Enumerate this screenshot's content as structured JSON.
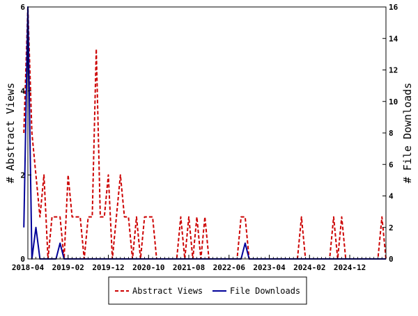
{
  "chart_data": {
    "type": "line",
    "xlabel": "",
    "ylabel_left": "# Abstract Views",
    "ylabel_right": "# File Downloads",
    "x_range": [
      "2018-04",
      "2025-09"
    ],
    "ylim_left": [
      0,
      6
    ],
    "ylim_right": [
      0,
      16
    ],
    "x_ticks": [
      "2018-04",
      "2019-02",
      "2019-12",
      "2020-10",
      "2021-08",
      "2022-06",
      "2023-04",
      "2024-02",
      "2024-12"
    ],
    "y_ticks_left": [
      "0",
      "2",
      "4",
      "6"
    ],
    "y_ticks_right": [
      "0",
      "2",
      "4",
      "6",
      "8",
      "10",
      "12",
      "14",
      "16"
    ],
    "legend_position": "bottom",
    "grid": false,
    "series": [
      {
        "name": "Abstract Views",
        "axis": "left",
        "color": "#cc0000",
        "style": "dashed",
        "points": [
          [
            "2018-03",
            3
          ],
          [
            "2018-04",
            6
          ],
          [
            "2018-05",
            3
          ],
          [
            "2018-06",
            2
          ],
          [
            "2018-07",
            1
          ],
          [
            "2018-08",
            2
          ],
          [
            "2018-09",
            0
          ],
          [
            "2018-10",
            1
          ],
          [
            "2018-11",
            1
          ],
          [
            "2018-12",
            1
          ],
          [
            "2019-01",
            0
          ],
          [
            "2019-02",
            2
          ],
          [
            "2019-03",
            1
          ],
          [
            "2019-04",
            1
          ],
          [
            "2019-05",
            1
          ],
          [
            "2019-06",
            0
          ],
          [
            "2019-07",
            1
          ],
          [
            "2019-08",
            1
          ],
          [
            "2019-09",
            5
          ],
          [
            "2019-10",
            1
          ],
          [
            "2019-11",
            1
          ],
          [
            "2019-12",
            2
          ],
          [
            "2020-01",
            0
          ],
          [
            "2020-02",
            1
          ],
          [
            "2020-03",
            2
          ],
          [
            "2020-04",
            1
          ],
          [
            "2020-05",
            1
          ],
          [
            "2020-06",
            0
          ],
          [
            "2020-07",
            1
          ],
          [
            "2020-08",
            0
          ],
          [
            "2020-09",
            1
          ],
          [
            "2020-10",
            1
          ],
          [
            "2020-11",
            1
          ],
          [
            "2020-12",
            0
          ],
          [
            "2021-01",
            0
          ],
          [
            "2021-02",
            0
          ],
          [
            "2021-03",
            0
          ],
          [
            "2021-04",
            0
          ],
          [
            "2021-05",
            0
          ],
          [
            "2021-06",
            1
          ],
          [
            "2021-07",
            0
          ],
          [
            "2021-08",
            1
          ],
          [
            "2021-09",
            0
          ],
          [
            "2021-10",
            1
          ],
          [
            "2021-11",
            0
          ],
          [
            "2021-12",
            1
          ],
          [
            "2022-01",
            0
          ],
          [
            "2022-02",
            0
          ],
          [
            "2022-03",
            0
          ],
          [
            "2022-04",
            0
          ],
          [
            "2022-05",
            0
          ],
          [
            "2022-06",
            0
          ],
          [
            "2022-07",
            0
          ],
          [
            "2022-08",
            0
          ],
          [
            "2022-09",
            1
          ],
          [
            "2022-10",
            1
          ],
          [
            "2022-11",
            0
          ],
          [
            "2022-12",
            0
          ],
          [
            "2023-01",
            0
          ],
          [
            "2023-02",
            0
          ],
          [
            "2023-03",
            0
          ],
          [
            "2023-04",
            0
          ],
          [
            "2023-05",
            0
          ],
          [
            "2023-06",
            0
          ],
          [
            "2023-07",
            0
          ],
          [
            "2023-08",
            0
          ],
          [
            "2023-09",
            0
          ],
          [
            "2023-10",
            0
          ],
          [
            "2023-11",
            0
          ],
          [
            "2023-12",
            1
          ],
          [
            "2024-01",
            0
          ],
          [
            "2024-02",
            0
          ],
          [
            "2024-03",
            0
          ],
          [
            "2024-04",
            0
          ],
          [
            "2024-05",
            0
          ],
          [
            "2024-06",
            0
          ],
          [
            "2024-07",
            0
          ],
          [
            "2024-08",
            1
          ],
          [
            "2024-09",
            0
          ],
          [
            "2024-10",
            1
          ],
          [
            "2024-11",
            0
          ],
          [
            "2024-12",
            0
          ],
          [
            "2025-01",
            0
          ],
          [
            "2025-02",
            0
          ],
          [
            "2025-03",
            0
          ],
          [
            "2025-04",
            0
          ],
          [
            "2025-05",
            0
          ],
          [
            "2025-06",
            0
          ],
          [
            "2025-07",
            0
          ],
          [
            "2025-08",
            1
          ],
          [
            "2025-09",
            0
          ]
        ]
      },
      {
        "name": "File Downloads",
        "axis": "right",
        "color": "#000099",
        "style": "solid",
        "points": [
          [
            "2018-03",
            2
          ],
          [
            "2018-04",
            16
          ],
          [
            "2018-05",
            0
          ],
          [
            "2018-06",
            2
          ],
          [
            "2018-07",
            0
          ],
          [
            "2018-08",
            0
          ],
          [
            "2018-09",
            0
          ],
          [
            "2018-10",
            0
          ],
          [
            "2018-11",
            0
          ],
          [
            "2018-12",
            1
          ],
          [
            "2019-01",
            0
          ],
          [
            "2019-02",
            0
          ],
          [
            "2019-06",
            0
          ],
          [
            "2019-12",
            0
          ],
          [
            "2020-06",
            0
          ],
          [
            "2020-12",
            0
          ],
          [
            "2021-06",
            0
          ],
          [
            "2021-12",
            0
          ],
          [
            "2022-06",
            0
          ],
          [
            "2022-09",
            0
          ],
          [
            "2022-10",
            1
          ],
          [
            "2022-11",
            0
          ],
          [
            "2023-06",
            0
          ],
          [
            "2023-12",
            0
          ],
          [
            "2024-06",
            0
          ],
          [
            "2024-12",
            0
          ],
          [
            "2025-06",
            0
          ],
          [
            "2025-09",
            0
          ]
        ]
      }
    ]
  }
}
